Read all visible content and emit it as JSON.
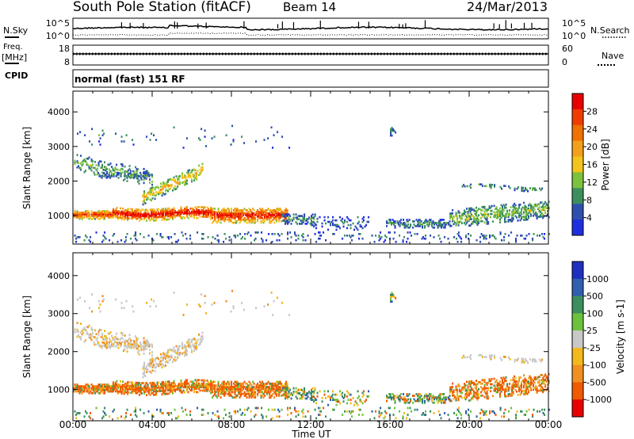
{
  "header": {
    "title": "South Pole Station (fitACF)",
    "beam": "Beam 14",
    "date": "24/Mar/2013"
  },
  "top_panels": {
    "nsky_label": "N.Sky",
    "nsky_ticks": [
      "10^5",
      "10^0"
    ],
    "nsearch_label": "N.Search",
    "nsearch_ticks": [
      "10^5",
      "10^0"
    ],
    "freq_label_1": "Freq.",
    "freq_label_2": "[MHz]",
    "freq_ticks": [
      "18",
      "8"
    ],
    "nave_label": "Nave",
    "nave_ticks": [
      "60",
      "0"
    ],
    "cpid_label": "CPID",
    "cpid_text": "normal (fast) 151 RF"
  },
  "chart_data": [
    {
      "type": "heatmap",
      "name": "power",
      "ylabel": "Slant Range [km]",
      "xlabel": "Time UT",
      "xticks": [
        "00:00",
        "04:00",
        "08:00",
        "12:00",
        "16:00",
        "20:00",
        "00:00"
      ],
      "xlim_hours": [
        0,
        24
      ],
      "yticks": [
        "1000",
        "2000",
        "3000",
        "4000"
      ],
      "ylim": [
        180,
        4600
      ],
      "colorbar_label": "Power [dB]",
      "colorbar_ticks": [
        "4",
        "8",
        "12",
        "16",
        "20",
        "24",
        "28"
      ],
      "colorbar_range": [
        0,
        32
      ],
      "colors": [
        "#1f2fe0",
        "#2f4fb0",
        "#3c8f5c",
        "#7cc23c",
        "#f2c41c",
        "#f2a01c",
        "#f07000",
        "#f03c00",
        "#e80000"
      ]
    },
    {
      "type": "heatmap",
      "name": "velocity",
      "ylabel": "Slant Range [km]",
      "xlabel": "Time UT",
      "xticks": [
        "00:00",
        "04:00",
        "08:00",
        "12:00",
        "16:00",
        "20:00",
        "00:00"
      ],
      "xlim_hours": [
        0,
        24
      ],
      "yticks": [
        "1000",
        "2000",
        "3000",
        "4000"
      ],
      "ylim": [
        180,
        4600
      ],
      "colorbar_label": "Velocity [m s-1]",
      "colorbar_ticks": [
        "1000",
        "500",
        "100",
        "25",
        "-25",
        "-100",
        "-500",
        "-1000"
      ],
      "colors": [
        "#1f2fc0",
        "#2f5faf",
        "#3c8f5c",
        "#6cc23c",
        "#c8c8c8",
        "#f2b81c",
        "#f09020",
        "#f05a00",
        "#e80000"
      ]
    }
  ],
  "footer": {
    "xlabel": "Time UT"
  }
}
